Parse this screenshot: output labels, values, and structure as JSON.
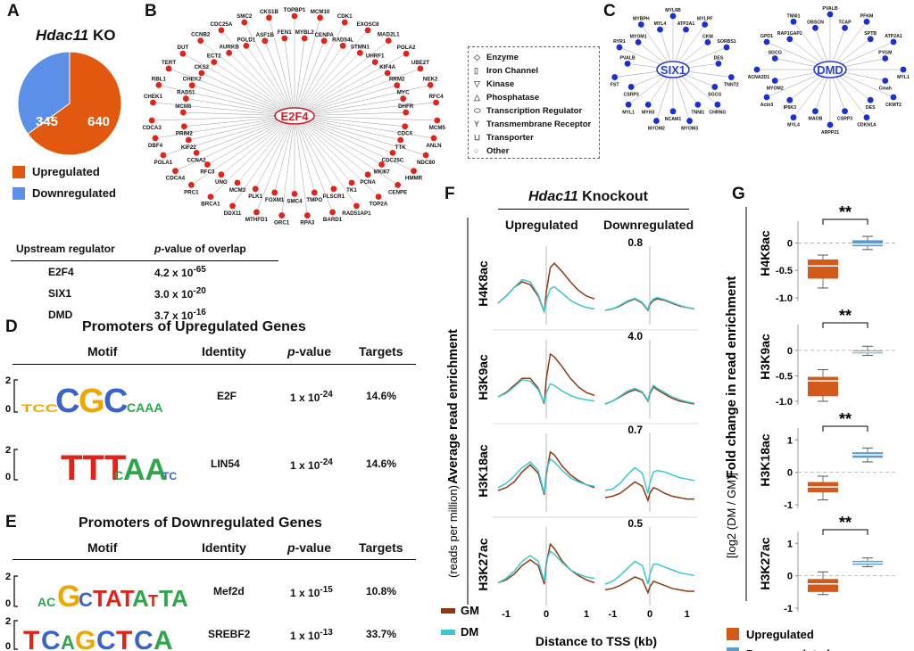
{
  "panels": {
    "a": "A",
    "b": "B",
    "c": "C",
    "d": "D",
    "e": "E",
    "f": "F",
    "g": "G"
  },
  "panelA": {
    "title_gene": "Hdac11",
    "title_rest": " KO",
    "pie": {
      "up": 640,
      "down": 345,
      "up_label": "640",
      "down_label": "345",
      "up_color": "#e3580f",
      "down_color": "#5b8fe8"
    },
    "legend": {
      "up": "Upregulated",
      "down": "Downregulated"
    }
  },
  "regulators": {
    "header": {
      "col1": "Upstream regulator",
      "col2_p": "p",
      "col2_rest": "-value of overlap"
    },
    "rows": [
      {
        "name": "E2F4",
        "base": "4.2 x 10",
        "exp": "-65"
      },
      {
        "name": "SIX1",
        "base": "3.0 x 10",
        "exp": "-20"
      },
      {
        "name": "DMD",
        "base": "3.7 x 10",
        "exp": "-16"
      }
    ]
  },
  "network_b": {
    "hub": "E2F4",
    "genes": [
      "TOPBP1",
      "MYBL2",
      "MCM10",
      "CENPA",
      "CDK1",
      "RAD54L",
      "EXOSC8",
      "STMN1",
      "MAD2L1",
      "UHRF1",
      "POLA2",
      "KIF4A",
      "UBE2T",
      "RRM2",
      "NEK2",
      "MYC",
      "RFC4",
      "DHFR",
      "MCM5",
      "CDC6",
      "ANLN",
      "TTK",
      "NDC80",
      "CDC25C",
      "HMMR",
      "MKI67",
      "CENPE",
      "PCNA",
      "TOP2A",
      "TK1",
      "RAD51AP1",
      "PLSCR1",
      "BARD1",
      "TMPO",
      "RPA3",
      "SMC4",
      "ORC1",
      "FOXM1",
      "MTHFD1",
      "PLK1",
      "DDX11",
      "MCM3",
      "BRCA1",
      "UNG",
      "PRC1",
      "RFC3",
      "CDCA4",
      "CCNA2",
      "POLA1",
      "KIF22",
      "DBF4",
      "PRIM2",
      "CDCA3",
      "MCM6",
      "CHEK1",
      "RAD51",
      "RBL1",
      "CHEK2",
      "TERT",
      "CKS2",
      "DUT",
      "ECT2",
      "CCNB2",
      "AURKB",
      "CDC25A",
      "POLD1",
      "SMC2",
      "ASF1B",
      "CKS1B",
      "FEN1"
    ]
  },
  "legend_b": [
    "Enzyme",
    "Iron Channel",
    "Kinase",
    "Phosphatase",
    "Transcription Regulator",
    "Transmembrane Receptor",
    "Transporter",
    "Other"
  ],
  "network_c1": {
    "hub": "SIX1",
    "genes": [
      "MYL6B",
      "ATP2A1",
      "MYLPF",
      "CKM",
      "SORBS1",
      "DES",
      "TNNT2",
      "SGCG",
      "CHRNG",
      "TNNI1",
      "MYOM3",
      "NCAM1",
      "MYOM2",
      "MYH3",
      "MYL1",
      "CSRP3",
      "FST",
      "PVALB",
      "RYR1",
      "MYOM1",
      "MYBPH",
      "MYL4"
    ]
  },
  "network_c2": {
    "hub": "DMD",
    "genes": [
      "PVALB",
      "TCAP",
      "PFKM",
      "SPTB",
      "ATP2A1",
      "PYGM",
      "MYL1",
      "Cmah",
      "CKMT2",
      "DES",
      "CDKN1A",
      "CSRP3",
      "ARPP21",
      "MAOB",
      "MYL4",
      "IP6K3",
      "Actn3",
      "MYOM2",
      "CACNA2D1",
      "SGCG",
      "GPD1",
      "RAP1GAP2",
      "TNNI1",
      "OBSCN"
    ]
  },
  "panelD": {
    "title": "Promoters of Upregulated Genes",
    "headers": {
      "motif": "Motif",
      "identity": "Identity",
      "p": "p",
      "p_rest": "-value",
      "targets": "Targets"
    },
    "rows": [
      {
        "identity": "E2F",
        "p_base": "1 x 10",
        "p_exp": "-24",
        "targets": "14.6%"
      },
      {
        "identity": "LIN54",
        "p_base": "1 x 10",
        "p_exp": "-24",
        "targets": "14.6%"
      }
    ]
  },
  "panelE": {
    "title": "Promoters of Downregulated Genes",
    "headers": {
      "motif": "Motif",
      "identity": "Identity",
      "p": "p",
      "p_rest": "-value",
      "targets": "Targets"
    },
    "rows": [
      {
        "identity": "Mef2d",
        "p_base": "1 x 10",
        "p_exp": "-15",
        "targets": "10.8%"
      },
      {
        "identity": "SREBF2",
        "p_base": "1 x 10",
        "p_exp": "-13",
        "targets": "33.7%"
      }
    ]
  },
  "logo_axis": {
    "two": "2",
    "zero": "0"
  },
  "panelF": {
    "title_gene": "Hdac11",
    "title_rest": " Knockout",
    "col_up": "Upregulated",
    "col_down": "Downregulated",
    "ylabel": "Average read enrichment",
    "ylabel_units": " (reads per million)",
    "xlabel": "Distance to TSS (kb)",
    "ticks": [
      "-1",
      "0",
      "1"
    ],
    "legend": [
      {
        "name": "GM",
        "color": "#8b3a12"
      },
      {
        "name": "DM",
        "color": "#3cc7cf"
      }
    ]
  },
  "chart_data": [
    {
      "type": "line",
      "title": "Hdac11 Knockout - ChIP profiles",
      "xlabel": "Distance to TSS (kb)",
      "ylabel": "Average read enrichment (reads per million)",
      "x": [
        -1.2,
        -1,
        -0.8,
        -0.6,
        -0.4,
        -0.2,
        -0.05,
        0,
        0.1,
        0.2,
        0.4,
        0.6,
        0.8,
        1,
        1.2
      ],
      "xlim": [
        -1.2,
        1.2
      ],
      "marks": [
        "H4K8ac",
        "H3K9ac",
        "H3K18ac",
        "H3K27ac"
      ],
      "down_scale": [
        "0.8",
        "4.0",
        "0.7",
        "0.5"
      ],
      "series": [
        {
          "mark": "H4K8ac",
          "group": "Upregulated",
          "name": "GM",
          "values": [
            0.3,
            0.4,
            0.52,
            0.6,
            0.56,
            0.4,
            0.18,
            0.45,
            0.8,
            0.86,
            0.74,
            0.6,
            0.48,
            0.4,
            0.36
          ]
        },
        {
          "mark": "H4K8ac",
          "group": "Upregulated",
          "name": "DM",
          "values": [
            0.3,
            0.4,
            0.52,
            0.63,
            0.6,
            0.42,
            0.18,
            0.34,
            0.5,
            0.53,
            0.44,
            0.34,
            0.28,
            0.24,
            0.22
          ]
        },
        {
          "mark": "H4K8ac",
          "group": "Downregulated",
          "name": "GM",
          "values": [
            0.2,
            0.22,
            0.26,
            0.32,
            0.36,
            0.3,
            0.2,
            0.28,
            0.34,
            0.36,
            0.34,
            0.3,
            0.26,
            0.24,
            0.22
          ]
        },
        {
          "mark": "H4K8ac",
          "group": "Downregulated",
          "name": "DM",
          "values": [
            0.2,
            0.22,
            0.27,
            0.33,
            0.37,
            0.31,
            0.21,
            0.3,
            0.36,
            0.38,
            0.35,
            0.31,
            0.27,
            0.24,
            0.22
          ]
        },
        {
          "mark": "H3K9ac",
          "group": "Upregulated",
          "name": "GM",
          "values": [
            0.3,
            0.36,
            0.46,
            0.56,
            0.56,
            0.42,
            0.2,
            0.55,
            0.9,
            0.86,
            0.72,
            0.56,
            0.44,
            0.36,
            0.32
          ]
        },
        {
          "mark": "H3K9ac",
          "group": "Upregulated",
          "name": "DM",
          "values": [
            0.3,
            0.35,
            0.44,
            0.54,
            0.52,
            0.4,
            0.22,
            0.36,
            0.48,
            0.46,
            0.38,
            0.32,
            0.28,
            0.26,
            0.24
          ]
        },
        {
          "mark": "H3K9ac",
          "group": "Downregulated",
          "name": "GM",
          "values": [
            0.2,
            0.24,
            0.3,
            0.36,
            0.4,
            0.36,
            0.24,
            0.34,
            0.44,
            0.4,
            0.34,
            0.28,
            0.24,
            0.22,
            0.2
          ]
        },
        {
          "mark": "H3K9ac",
          "group": "Downregulated",
          "name": "DM",
          "values": [
            0.2,
            0.24,
            0.31,
            0.38,
            0.42,
            0.37,
            0.25,
            0.36,
            0.46,
            0.42,
            0.36,
            0.3,
            0.26,
            0.23,
            0.21
          ]
        },
        {
          "mark": "H3K18ac",
          "group": "Upregulated",
          "name": "GM",
          "values": [
            0.3,
            0.34,
            0.42,
            0.56,
            0.66,
            0.54,
            0.24,
            0.52,
            0.84,
            0.8,
            0.64,
            0.52,
            0.44,
            0.38,
            0.34
          ]
        },
        {
          "mark": "H3K18ac",
          "group": "Upregulated",
          "name": "DM",
          "values": [
            0.34,
            0.4,
            0.5,
            0.62,
            0.7,
            0.58,
            0.26,
            0.58,
            0.74,
            0.7,
            0.58,
            0.48,
            0.42,
            0.38,
            0.36
          ]
        },
        {
          "mark": "H3K18ac",
          "group": "Downregulated",
          "name": "GM",
          "values": [
            0.2,
            0.22,
            0.26,
            0.34,
            0.42,
            0.36,
            0.16,
            0.26,
            0.34,
            0.32,
            0.26,
            0.22,
            0.2,
            0.18,
            0.18
          ]
        },
        {
          "mark": "H3K18ac",
          "group": "Downregulated",
          "name": "DM",
          "values": [
            0.3,
            0.32,
            0.4,
            0.52,
            0.62,
            0.54,
            0.26,
            0.4,
            0.56,
            0.58,
            0.56,
            0.52,
            0.48,
            0.46,
            0.44
          ]
        },
        {
          "mark": "H3K27ac",
          "group": "Upregulated",
          "name": "GM",
          "values": [
            0.32,
            0.36,
            0.44,
            0.56,
            0.64,
            0.56,
            0.3,
            0.58,
            0.86,
            0.8,
            0.62,
            0.5,
            0.42,
            0.36,
            0.32
          ]
        },
        {
          "mark": "H3K27ac",
          "group": "Upregulated",
          "name": "DM",
          "values": [
            0.32,
            0.38,
            0.48,
            0.62,
            0.7,
            0.62,
            0.34,
            0.62,
            0.76,
            0.72,
            0.6,
            0.5,
            0.44,
            0.4,
            0.38
          ]
        },
        {
          "mark": "H3K27ac",
          "group": "Downregulated",
          "name": "GM",
          "values": [
            0.22,
            0.24,
            0.28,
            0.34,
            0.4,
            0.36,
            0.18,
            0.26,
            0.34,
            0.32,
            0.28,
            0.24,
            0.22,
            0.2,
            0.2
          ]
        },
        {
          "mark": "H3K27ac",
          "group": "Downregulated",
          "name": "DM",
          "values": [
            0.3,
            0.34,
            0.42,
            0.52,
            0.62,
            0.56,
            0.3,
            0.44,
            0.58,
            0.58,
            0.54,
            0.5,
            0.46,
            0.44,
            0.42
          ]
        }
      ]
    },
    {
      "type": "box",
      "title": "Fold change in read enrichment",
      "ylabel_main": "Fold change in read enrichment ",
      "ylabel_log": "[log",
      "ylabel_sub": "2",
      "ylabel_rest": " (DM / GM)]",
      "categories": [
        "Upregulated",
        "Downregulated"
      ],
      "colors": {
        "Upregulated": "#d35a1a",
        "Downregulated": "#5b9bd5"
      },
      "significance": "**",
      "panels": [
        {
          "mark": "H4K8ac",
          "ylim": [
            -1.0,
            0.3
          ],
          "ticks": [
            0,
            -0.5,
            -1.0
          ],
          "tick_labels": [
            "0",
            "-0.5",
            "-1.0"
          ],
          "boxes": [
            {
              "group": "Upregulated",
              "min": -0.82,
              "q1": -0.65,
              "median": -0.42,
              "q3": -0.3,
              "max": -0.22
            },
            {
              "group": "Downregulated",
              "min": -0.12,
              "q1": -0.06,
              "median": -0.02,
              "q3": 0.05,
              "max": 0.12
            }
          ]
        },
        {
          "mark": "H3K9ac",
          "ylim": [
            -1.0,
            0.4
          ],
          "ticks": [
            0,
            -0.5,
            -1.0
          ],
          "tick_labels": [
            "0",
            "-0.5",
            "-1.0"
          ],
          "boxes": [
            {
              "group": "Upregulated",
              "min": -1.0,
              "q1": -0.9,
              "median": -0.6,
              "q3": -0.52,
              "max": -0.38
            },
            {
              "group": "Downregulated",
              "min": -0.1,
              "q1": -0.06,
              "median": -0.03,
              "q3": 0.0,
              "max": 0.08
            }
          ]
        },
        {
          "mark": "H3K18ac",
          "ylim": [
            -1.0,
            1.2
          ],
          "ticks": [
            1,
            0,
            -1
          ],
          "tick_labels": [
            "1",
            "0",
            "-1"
          ],
          "boxes": [
            {
              "group": "Upregulated",
              "min": -0.85,
              "q1": -0.62,
              "median": -0.45,
              "q3": -0.3,
              "max": -0.12
            },
            {
              "group": "Downregulated",
              "min": 0.32,
              "q1": 0.45,
              "median": 0.54,
              "q3": 0.62,
              "max": 0.75
            }
          ]
        },
        {
          "mark": "H3K27ac",
          "ylim": [
            -1.0,
            1.2
          ],
          "ticks": [
            1,
            0,
            -1
          ],
          "tick_labels": [
            "1",
            "0",
            "-1"
          ],
          "boxes": [
            {
              "group": "Upregulated",
              "min": -0.58,
              "q1": -0.5,
              "median": -0.25,
              "q3": -0.1,
              "max": 0.12
            },
            {
              "group": "Downregulated",
              "min": 0.28,
              "q1": 0.34,
              "median": 0.4,
              "q3": 0.46,
              "max": 0.55
            }
          ]
        }
      ],
      "legend": {
        "up": "Upregulated",
        "down": "Downregulated"
      }
    }
  ]
}
